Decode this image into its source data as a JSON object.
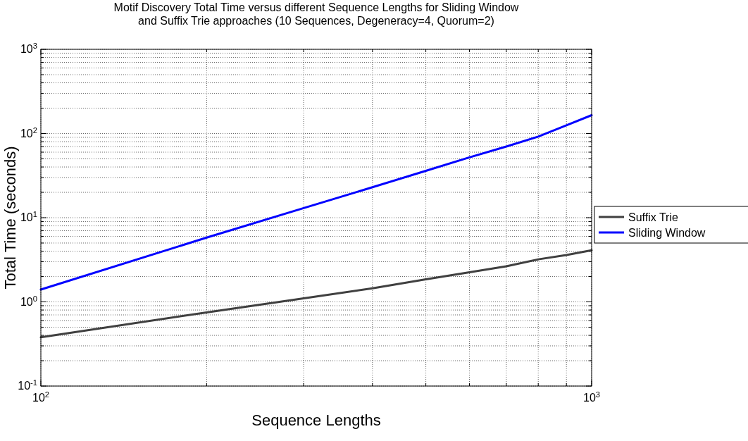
{
  "chart_data": {
    "type": "line",
    "title": "Motif Discovery Total Time versus different Sequence Lengths for Sliding Window\nand Suffix Trie approaches (10 Sequences, Degeneracy=4, Quorum=2)",
    "xlabel": "Sequence Lengths",
    "ylabel": "Total Time (seconds)",
    "log": "xy",
    "grid": true,
    "legend": "right",
    "line_style": "solid",
    "xlim": [
      100,
      1000
    ],
    "ylim": [
      0.1,
      1000
    ],
    "xticks": [
      {
        "value": 100,
        "label": "10$^{2}$"
      },
      {
        "value": 200,
        "label": null
      },
      {
        "value": 300,
        "label": null
      },
      {
        "value": 400,
        "label": null
      },
      {
        "value": 500,
        "label": null
      },
      {
        "value": 600,
        "label": null
      },
      {
        "value": 700,
        "label": null
      },
      {
        "value": 800,
        "label": null
      },
      {
        "value": 900,
        "label": null
      },
      {
        "value": 1000,
        "label": "10$^{3}$"
      }
    ],
    "yticks": [
      {
        "value": 0.1,
        "label": "10$^{-1}$"
      },
      {
        "value": 0.2,
        "label": null
      },
      {
        "value": 0.3,
        "label": null
      },
      {
        "value": 0.4,
        "label": null
      },
      {
        "value": 0.5,
        "label": null
      },
      {
        "value": 0.6,
        "label": null
      },
      {
        "value": 0.7,
        "label": null
      },
      {
        "value": 0.8,
        "label": null
      },
      {
        "value": 0.9,
        "label": null
      },
      {
        "value": 1,
        "label": "10$^{0}$"
      },
      {
        "value": 2,
        "label": null
      },
      {
        "value": 3,
        "label": null
      },
      {
        "value": 4,
        "label": null
      },
      {
        "value": 5,
        "label": null
      },
      {
        "value": 6,
        "label": null
      },
      {
        "value": 7,
        "label": null
      },
      {
        "value": 8,
        "label": null
      },
      {
        "value": 9,
        "label": null
      },
      {
        "value": 10,
        "label": "10$^{1}$"
      },
      {
        "value": 20,
        "label": null
      },
      {
        "value": 30,
        "label": null
      },
      {
        "value": 40,
        "label": null
      },
      {
        "value": 50,
        "label": null
      },
      {
        "value": 60,
        "label": null
      },
      {
        "value": 70,
        "label": null
      },
      {
        "value": 80,
        "label": null
      },
      {
        "value": 90,
        "label": null
      },
      {
        "value": 100,
        "label": "10$^{2}$"
      },
      {
        "value": 200,
        "label": null
      },
      {
        "value": 300,
        "label": null
      },
      {
        "value": 400,
        "label": null
      },
      {
        "value": 500,
        "label": null
      },
      {
        "value": 600,
        "label": null
      },
      {
        "value": 700,
        "label": null
      },
      {
        "value": 800,
        "label": null
      },
      {
        "value": 900,
        "label": null
      },
      {
        "value": 1000,
        "label": "10$^{3}$"
      }
    ],
    "x": [
      100,
      200,
      300,
      400,
      500,
      600,
      700,
      800,
      900,
      1000
    ],
    "series": [
      {
        "name": "Suffix Trie",
        "color": "#404040",
        "values": [
          0.38,
          0.75,
          1.1,
          1.45,
          1.85,
          2.25,
          2.65,
          3.2,
          3.6,
          4.1
        ]
      },
      {
        "name": "Sliding Window",
        "color": "#0000ff",
        "values": [
          1.4,
          5.8,
          13,
          23,
          36,
          52,
          70,
          92,
          125,
          165
        ]
      }
    ]
  }
}
